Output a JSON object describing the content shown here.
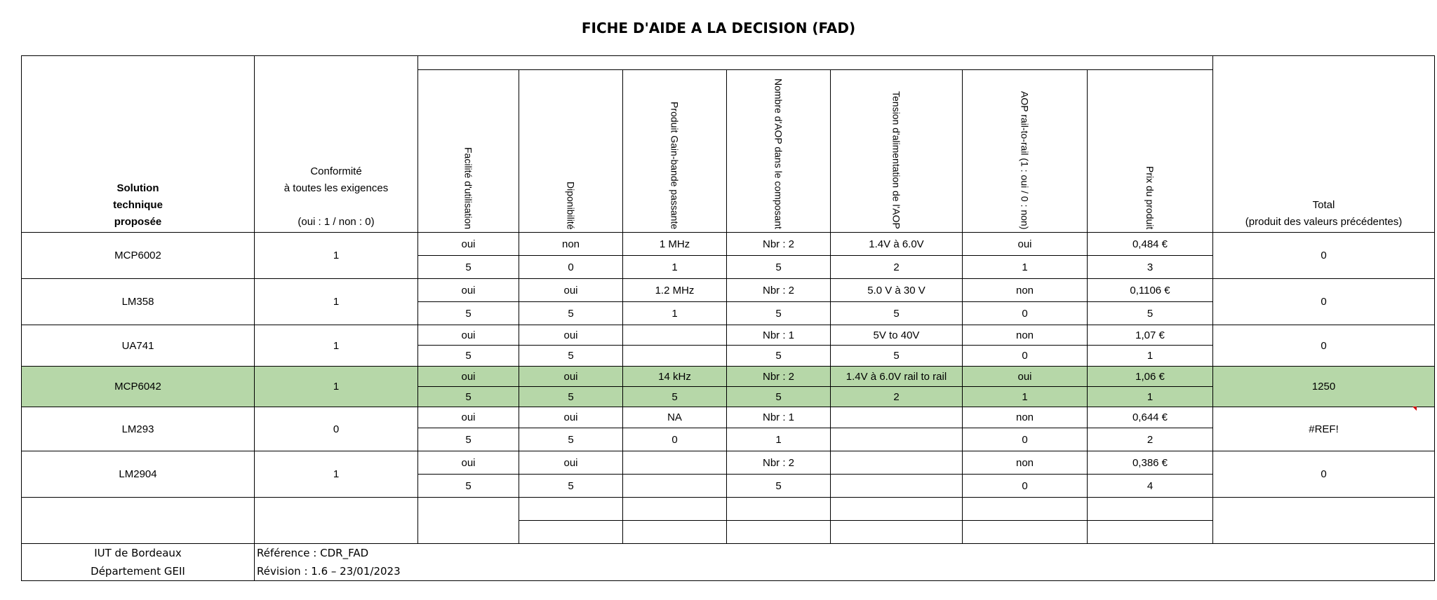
{
  "title": "FICHE D'AIDE A LA DECISION (FAD)",
  "headers": {
    "solution": [
      "Solution",
      "technique",
      "proposée"
    ],
    "conformite": [
      "Conformité",
      "à toutes les exigences",
      "",
      "(oui : 1 / non : 0)"
    ],
    "criteria": [
      "Facilité d'utilisation",
      "Diponibilité",
      "Produit Gain-bande passante",
      "Nombre d'AOP dans le composant",
      "Tension d'alimentation de l'AOP",
      "AOP rail-to-rail (1 : oui / 0 : non)",
      "Prix du produit"
    ],
    "total": [
      "Total",
      "(produit des valeurs précédentes)"
    ]
  },
  "rows": [
    {
      "name": "MCP6002",
      "conformite": "1",
      "values": [
        "oui",
        "non",
        "1 MHz",
        "Nbr : 2",
        "1.4V à 6.0V",
        "oui",
        "0,484 €"
      ],
      "scores": [
        "5",
        "0",
        "1",
        "5",
        "2",
        "1",
        "3"
      ],
      "total": "0",
      "highlight": false
    },
    {
      "name": "LM358",
      "conformite": "1",
      "values": [
        "oui",
        "oui",
        "1.2 MHz",
        "Nbr : 2",
        "5.0 V à 30 V",
        "non",
        "0,1106 €"
      ],
      "scores": [
        "5",
        "5",
        "1",
        "5",
        "5",
        "0",
        "5"
      ],
      "total": "0",
      "highlight": false
    },
    {
      "name": "UA741",
      "conformite": "1",
      "values": [
        "oui",
        "oui",
        "",
        "Nbr : 1",
        "5V to 40V",
        "non",
        "1,07 €"
      ],
      "scores": [
        "5",
        "5",
        "",
        "5",
        "5",
        "0",
        "1"
      ],
      "total": "0",
      "highlight": false
    },
    {
      "name": "MCP6042",
      "conformite": "1",
      "values": [
        "oui",
        "oui",
        "14 kHz",
        "Nbr : 2",
        "1.4V à 6.0V rail to rail",
        "oui",
        "1,06 €"
      ],
      "scores": [
        "5",
        "5",
        "5",
        "5",
        "2",
        "1",
        "1"
      ],
      "total": "1250",
      "highlight": true
    },
    {
      "name": "LM293",
      "conformite": "0",
      "values": [
        "oui",
        "oui",
        "NA",
        "Nbr : 1",
        "",
        "non",
        "0,644 €"
      ],
      "scores": [
        "5",
        "5",
        "0",
        "1",
        "",
        "0",
        "2"
      ],
      "total": "#REF!",
      "highlight": false
    },
    {
      "name": "LM2904",
      "conformite": "1",
      "values": [
        "oui",
        "oui",
        "",
        "Nbr : 2",
        "",
        "non",
        "0,386 €"
      ],
      "scores": [
        "5",
        "5",
        "",
        "5",
        "",
        "0",
        "4"
      ],
      "total": "0",
      "highlight": false
    }
  ],
  "footer": {
    "org_line1": "IUT de Bordeaux",
    "org_line2": "Département GEII",
    "reference": "Référence : CDR_FAD",
    "revision": "Révision : 1.6 – 23/01/2023"
  }
}
